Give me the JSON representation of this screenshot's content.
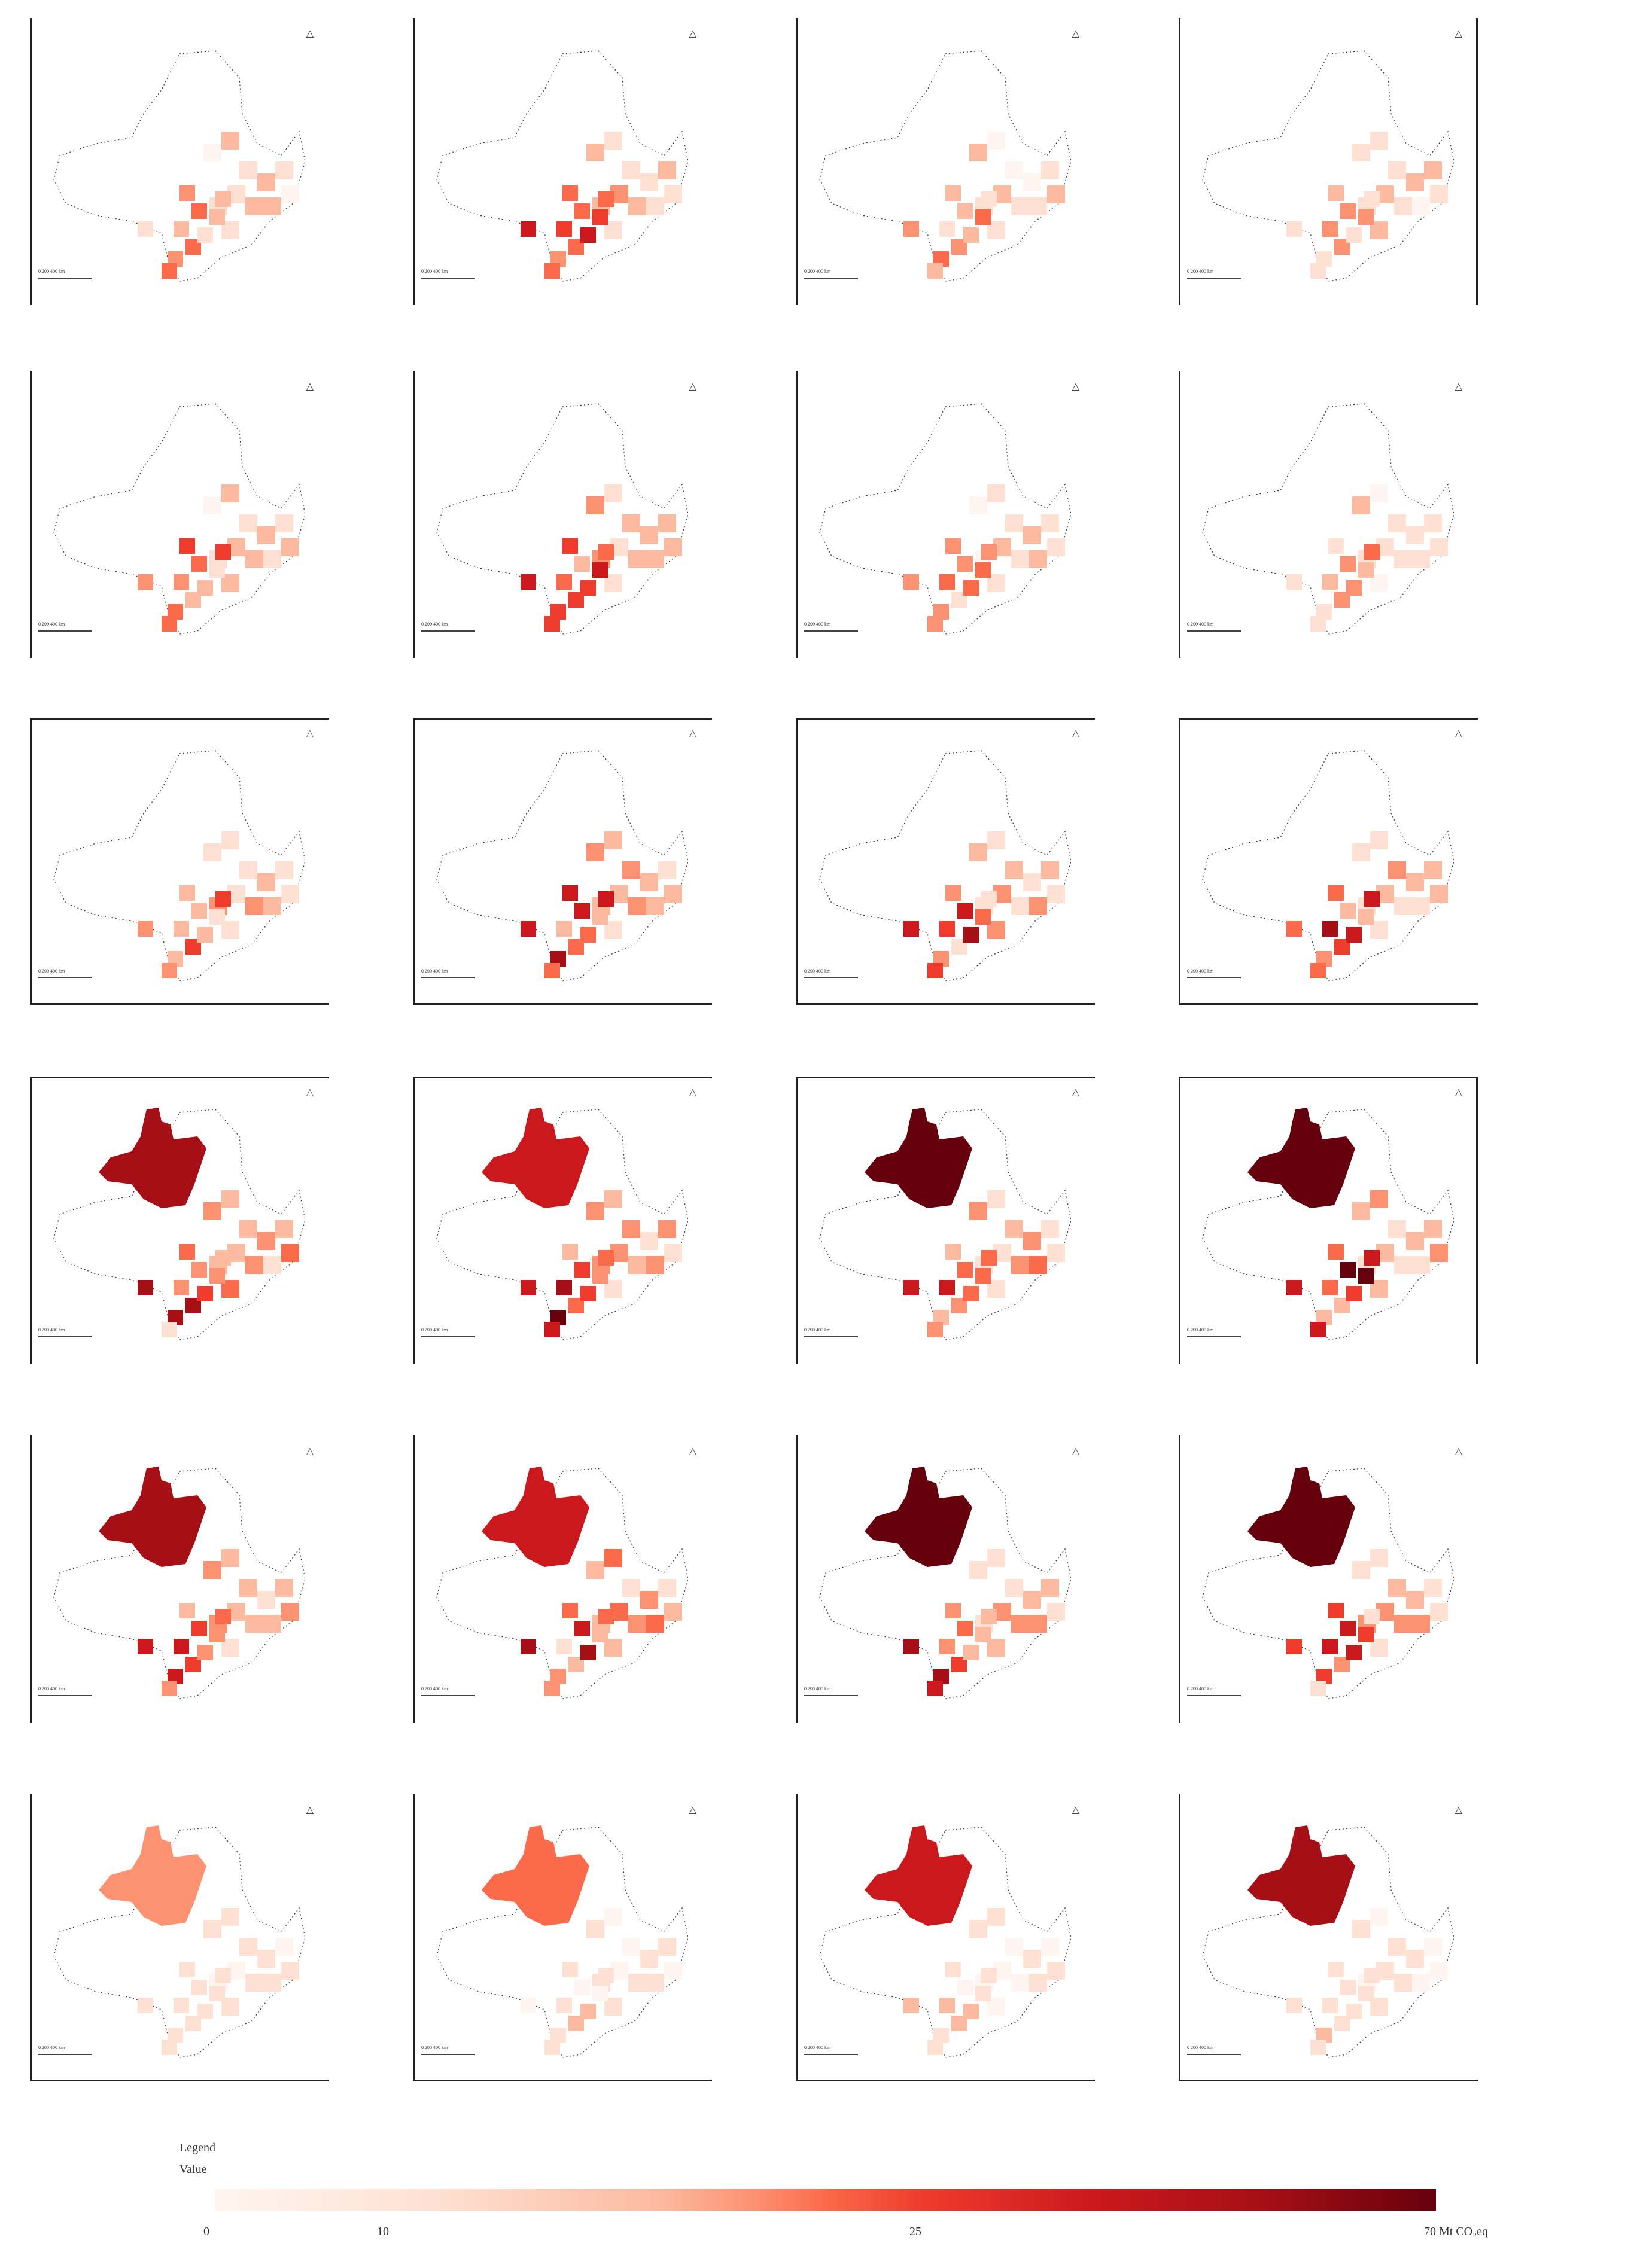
{
  "figure": {
    "rows": 6,
    "cols": 4,
    "panel_common": {
      "north_arrow": "north-arrow-icon",
      "scale_bar": "0  200  400 km"
    }
  },
  "legend": {
    "title": "Legend",
    "subtitle": "Value",
    "ticks": [
      "0",
      "10",
      "25",
      "70 Mt CO₂eq"
    ],
    "tick_positions": [
      0,
      0.143,
      0.357,
      1.0
    ],
    "colors": [
      "#fff5f0",
      "#fee0d2",
      "#fcbba1",
      "#fc9272",
      "#fb6a4a",
      "#ef3b2c",
      "#cb181d",
      "#a50f15",
      "#67000d"
    ]
  },
  "chart_data": {
    "type": "heatmap",
    "title": "",
    "description": "Small-multiple choropleth maps (6 rows x 4 columns) of regional emissions, color scale 0-70 Mt CO2eq",
    "colorbar": {
      "min": 0,
      "max": 70,
      "ticks": [
        0,
        10,
        25,
        70
      ],
      "unit": "Mt CO₂eq",
      "label": "Value"
    },
    "panels": [
      {
        "row": 1,
        "col": 1,
        "nw_region": 0,
        "southern_belt": "dark",
        "intensity": 0.55
      },
      {
        "row": 1,
        "col": 2,
        "nw_region": 0,
        "southern_belt": "dark",
        "intensity": 0.6
      },
      {
        "row": 1,
        "col": 3,
        "nw_region": 0,
        "southern_belt": "medium",
        "intensity": 0.45
      },
      {
        "row": 1,
        "col": 4,
        "nw_region": 0,
        "southern_belt": "medium",
        "intensity": 0.4
      },
      {
        "row": 2,
        "col": 1,
        "nw_region": 0,
        "southern_belt": "dark",
        "intensity": 0.55
      },
      {
        "row": 2,
        "col": 2,
        "nw_region": 0,
        "southern_belt": "dark",
        "intensity": 0.65
      },
      {
        "row": 2,
        "col": 3,
        "nw_region": 0,
        "southern_belt": "medium",
        "intensity": 0.45
      },
      {
        "row": 2,
        "col": 4,
        "nw_region": 0,
        "southern_belt": "medium",
        "intensity": 0.4
      },
      {
        "row": 3,
        "col": 1,
        "nw_region": 0,
        "southern_belt": "dark",
        "intensity": 0.6
      },
      {
        "row": 3,
        "col": 2,
        "nw_region": 0,
        "southern_belt": "very dark",
        "intensity": 0.8
      },
      {
        "row": 3,
        "col": 3,
        "nw_region": 0,
        "southern_belt": "dark",
        "intensity": 0.7
      },
      {
        "row": 3,
        "col": 4,
        "nw_region": 0,
        "southern_belt": "dark",
        "intensity": 0.7
      },
      {
        "row": 4,
        "col": 1,
        "nw_region": 65,
        "southern_belt": "very dark",
        "intensity": 0.85
      },
      {
        "row": 4,
        "col": 2,
        "nw_region": 55,
        "southern_belt": "very dark",
        "intensity": 0.9
      },
      {
        "row": 4,
        "col": 3,
        "nw_region": 68,
        "southern_belt": "very dark",
        "intensity": 0.85
      },
      {
        "row": 4,
        "col": 4,
        "nw_region": 70,
        "southern_belt": "very dark",
        "intensity": 0.85
      },
      {
        "row": 5,
        "col": 1,
        "nw_region": 62,
        "southern_belt": "dark",
        "intensity": 0.75
      },
      {
        "row": 5,
        "col": 2,
        "nw_region": 52,
        "southern_belt": "very dark",
        "intensity": 0.85
      },
      {
        "row": 5,
        "col": 3,
        "nw_region": 66,
        "southern_belt": "dark",
        "intensity": 0.75
      },
      {
        "row": 5,
        "col": 4,
        "nw_region": 66,
        "southern_belt": "dark",
        "intensity": 0.7
      },
      {
        "row": 6,
        "col": 1,
        "nw_region": 28,
        "southern_belt": "light",
        "intensity": 0.2
      },
      {
        "row": 6,
        "col": 2,
        "nw_region": 38,
        "southern_belt": "light",
        "intensity": 0.2
      },
      {
        "row": 6,
        "col": 3,
        "nw_region": 50,
        "southern_belt": "light",
        "intensity": 0.2
      },
      {
        "row": 6,
        "col": 4,
        "nw_region": 62,
        "southern_belt": "light",
        "intensity": 0.2
      }
    ]
  }
}
